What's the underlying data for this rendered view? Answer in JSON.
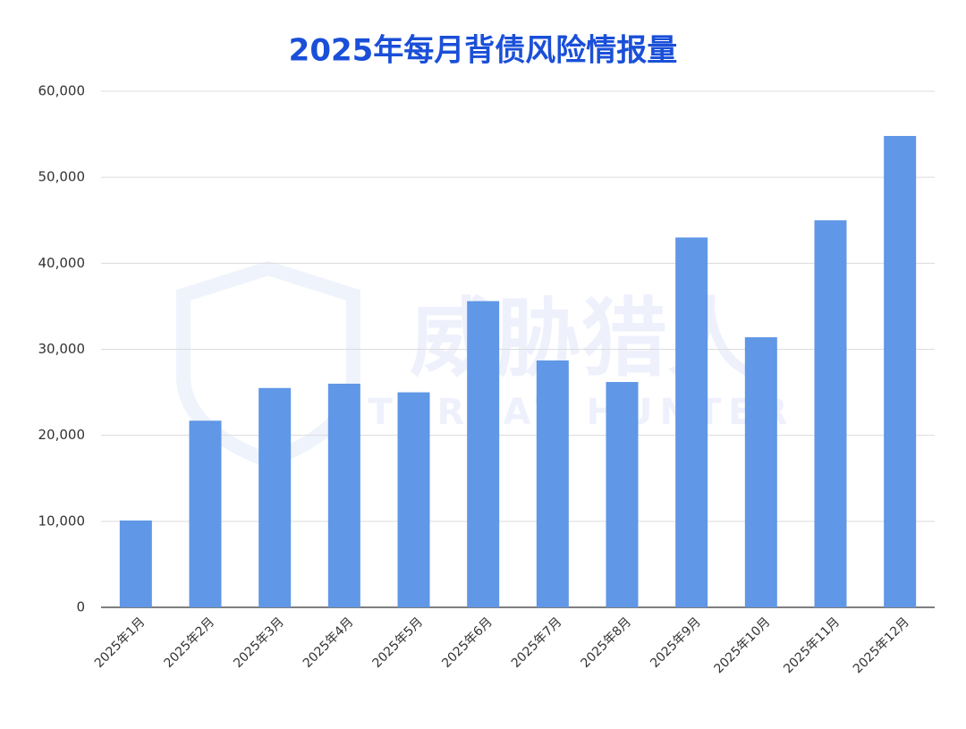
{
  "chart_data": {
    "type": "bar",
    "title": "2025年每月背债风险情报量",
    "watermark": {
      "text": "威胁猎人",
      "subtext": "THREAT HUNTER"
    },
    "categories": [
      "2025年1月",
      "2025年2月",
      "2025年3月",
      "2025年4月",
      "2025年5月",
      "2025年6月",
      "2025年7月",
      "2025年8月",
      "2025年9月",
      "2025年10月",
      "2025年11月",
      "2025年12月"
    ],
    "values": [
      10100,
      21700,
      25500,
      26000,
      25000,
      35600,
      28700,
      26200,
      43000,
      31400,
      45000,
      54800
    ],
    "color": "#6097e6",
    "ylim": [
      0,
      60000
    ],
    "yticks": [
      0,
      {
        "value": 10000,
        "label": "10,000"
      },
      {
        "value": 20000,
        "label": "20,000"
      },
      {
        "value": 30000,
        "label": "30,000"
      },
      {
        "value": 40000,
        "label": "40,000"
      },
      {
        "value": 50000,
        "label": "50,000"
      },
      {
        "value": 60000,
        "label": "60,000"
      }
    ],
    "grid": true
  }
}
